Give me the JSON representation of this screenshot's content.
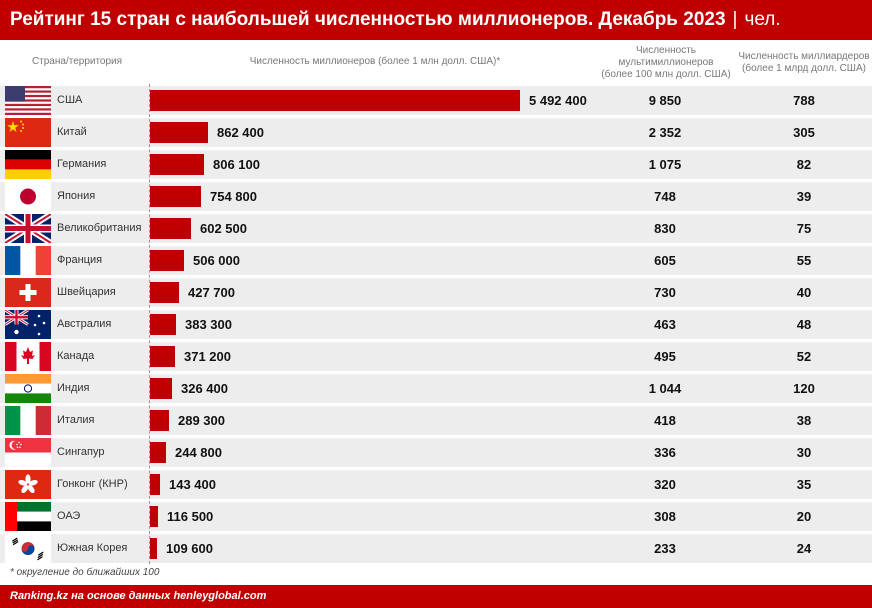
{
  "header": {
    "title": "Рейтинг 15 стран с наибольшей численностью миллионеров. Декабрь 2023",
    "separator": "|",
    "unit": "чел."
  },
  "columns": {
    "country": "Страна/территория",
    "millionaires": "Численность миллионеров (более 1 млн долл. США)*",
    "multi_line1": "Численность",
    "multi_line2": "мультимиллионеров",
    "multi_line3": "(более 100 млн долл. США)",
    "billi_line1": "Численность миллиардеров",
    "billi_line2": "(более 1 млрд долл. США)"
  },
  "chart_data": {
    "type": "bar",
    "orientation": "horizontal",
    "title": "Рейтинг 15 стран с наибольшей численностью миллионеров. Декабрь 2023",
    "categories": [
      "США",
      "Китай",
      "Германия",
      "Япония",
      "Великобритания",
      "Франция",
      "Швейцария",
      "Австралия",
      "Канада",
      "Индия",
      "Италия",
      "Сингапур",
      "Гонконг (КНР)",
      "ОАЭ",
      "Южная Корея"
    ],
    "series": [
      {
        "name": "Численность миллионеров (более 1 млн долл. США)*",
        "values": [
          5492400,
          862400,
          806100,
          754800,
          602500,
          506000,
          427700,
          383300,
          371200,
          326400,
          289300,
          244800,
          143400,
          116500,
          109600
        ]
      }
    ],
    "xlim": [
      0,
      5492400
    ],
    "grid": false
  },
  "rows": [
    {
      "country": "США",
      "flag": "us-flag-icon",
      "millionaires": "5 492 400",
      "multi": "9 850",
      "billi": "788"
    },
    {
      "country": "Китай",
      "flag": "cn-flag-icon",
      "millionaires": "862 400",
      "multi": "2 352",
      "billi": "305"
    },
    {
      "country": "Германия",
      "flag": "de-flag-icon",
      "millionaires": "806 100",
      "multi": "1 075",
      "billi": "82"
    },
    {
      "country": "Япония",
      "flag": "jp-flag-icon",
      "millionaires": "754 800",
      "multi": "748",
      "billi": "39"
    },
    {
      "country": "Великобритания",
      "flag": "gb-flag-icon",
      "millionaires": "602 500",
      "multi": "830",
      "billi": "75"
    },
    {
      "country": "Франция",
      "flag": "fr-flag-icon",
      "millionaires": "506 000",
      "multi": "605",
      "billi": "55"
    },
    {
      "country": "Швейцария",
      "flag": "ch-flag-icon",
      "millionaires": "427 700",
      "multi": "730",
      "billi": "40"
    },
    {
      "country": "Австралия",
      "flag": "au-flag-icon",
      "millionaires": "383 300",
      "multi": "463",
      "billi": "48"
    },
    {
      "country": "Канада",
      "flag": "ca-flag-icon",
      "millionaires": "371 200",
      "multi": "495",
      "billi": "52"
    },
    {
      "country": "Индия",
      "flag": "in-flag-icon",
      "millionaires": "326 400",
      "multi": "1 044",
      "billi": "120"
    },
    {
      "country": "Италия",
      "flag": "it-flag-icon",
      "millionaires": "289 300",
      "multi": "418",
      "billi": "38"
    },
    {
      "country": "Сингапур",
      "flag": "sg-flag-icon",
      "millionaires": "244 800",
      "multi": "336",
      "billi": "30"
    },
    {
      "country": "Гонконг (КНР)",
      "flag": "hk-flag-icon",
      "millionaires": "143 400",
      "multi": "320",
      "billi": "35"
    },
    {
      "country": "ОАЭ",
      "flag": "ae-flag-icon",
      "millionaires": "116 500",
      "multi": "308",
      "billi": "20"
    },
    {
      "country": "Южная Корея",
      "flag": "kr-flag-icon",
      "millionaires": "109 600",
      "multi": "233",
      "billi": "24"
    }
  ],
  "footnote": "* округление до ближайших 100",
  "footer": "Ranking.kz на основе данных henleyglobal.com",
  "colors": {
    "accent": "#c00000",
    "row_bg": "#ededed"
  }
}
